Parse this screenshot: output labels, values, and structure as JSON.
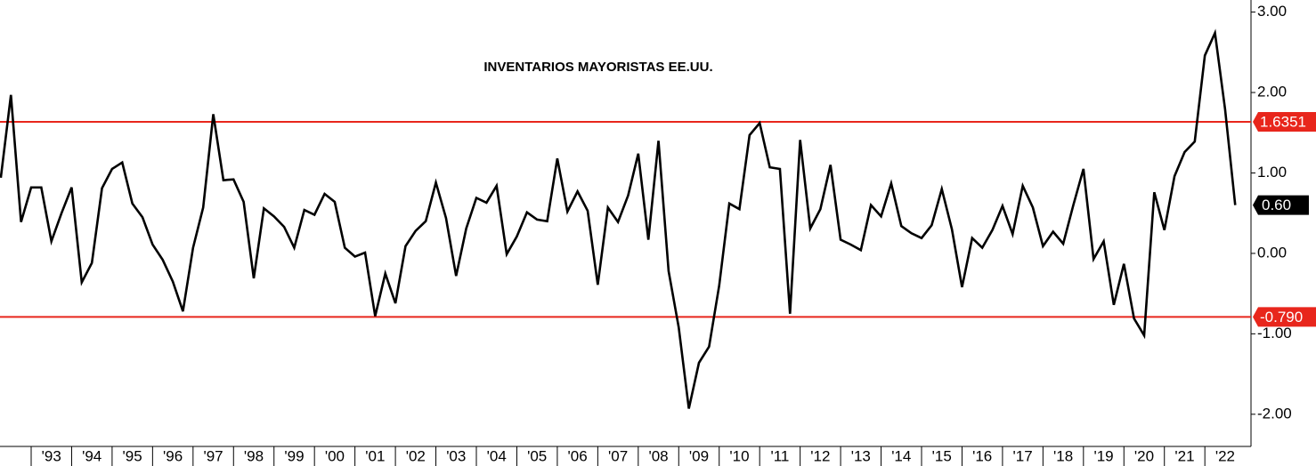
{
  "chart_data": {
    "type": "line",
    "title": "INVENTARIOS MAYORISTAS EE.UU.",
    "x": [
      1992.25,
      1992.5,
      1992.75,
      1993,
      1993.25,
      1993.5,
      1993.75,
      1994,
      1994.25,
      1994.5,
      1994.75,
      1995,
      1995.25,
      1995.5,
      1995.75,
      1996,
      1996.25,
      1996.5,
      1996.75,
      1997,
      1997.25,
      1997.5,
      1997.75,
      1998,
      1998.25,
      1998.5,
      1998.75,
      1999,
      1999.25,
      1999.5,
      1999.75,
      2000,
      2000.25,
      2000.5,
      2000.75,
      2001,
      2001.25,
      2001.5,
      2001.75,
      2002,
      2002.25,
      2002.5,
      2002.75,
      2003,
      2003.25,
      2003.5,
      2003.75,
      2004,
      2004.25,
      2004.5,
      2004.75,
      2005,
      2005.25,
      2005.5,
      2005.75,
      2006,
      2006.25,
      2006.5,
      2006.75,
      2007,
      2007.25,
      2007.5,
      2007.75,
      2008,
      2008.25,
      2008.5,
      2008.75,
      2009,
      2009.25,
      2009.5,
      2009.75,
      2010,
      2010.25,
      2010.5,
      2010.75,
      2011,
      2011.25,
      2011.5,
      2011.75,
      2012,
      2012.25,
      2012.5,
      2012.75,
      2013,
      2013.25,
      2013.5,
      2013.75,
      2014,
      2014.25,
      2014.5,
      2014.75,
      2015,
      2015.25,
      2015.5,
      2015.75,
      2016,
      2016.25,
      2016.5,
      2016.75,
      2017,
      2017.25,
      2017.5,
      2017.75,
      2018,
      2018.25,
      2018.5,
      2018.75,
      2019,
      2019.25,
      2019.5,
      2019.75,
      2020,
      2020.25,
      2020.5,
      2020.75,
      2021,
      2021.25,
      2021.5,
      2021.75,
      2022,
      2022.25,
      2022.5,
      2022.75
    ],
    "series": [
      {
        "color": "#000000",
        "values": [
          0.94,
          1.97,
          0.39,
          0.82,
          0.82,
          0.15,
          0.5,
          0.82,
          -0.36,
          -0.12,
          0.81,
          1.05,
          1.13,
          0.62,
          0.45,
          0.11,
          -0.08,
          -0.35,
          -0.72,
          0.07,
          0.57,
          1.73,
          0.91,
          0.92,
          0.64,
          -0.31,
          0.56,
          0.46,
          0.33,
          0.07,
          0.54,
          0.48,
          0.74,
          0.64,
          0.07,
          -0.04,
          0.01,
          -0.78,
          -0.25,
          -0.62,
          0.09,
          0.28,
          0.4,
          0.88,
          0.44,
          -0.28,
          0.31,
          0.69,
          0.63,
          0.84,
          -0.01,
          0.21,
          0.51,
          0.42,
          0.4,
          1.18,
          0.52,
          0.77,
          0.53,
          -0.39,
          0.57,
          0.39,
          0.72,
          1.24,
          0.17,
          1.4,
          -0.22,
          -0.92,
          -1.93,
          -1.36,
          -1.16,
          -0.4,
          0.62,
          0.55,
          1.47,
          1.62,
          1.07,
          1.05,
          -0.75,
          1.41,
          0.31,
          0.55,
          1.1,
          0.17,
          0.11,
          0.04,
          0.6,
          0.46,
          0.87,
          0.34,
          0.25,
          0.19,
          0.35,
          0.8,
          0.3,
          -0.42,
          0.19,
          0.07,
          0.29,
          0.59,
          0.24,
          0.84,
          0.57,
          0.09,
          0.27,
          0.12,
          0.6,
          1.05,
          -0.07,
          0.15,
          -0.64,
          -0.13,
          -0.81,
          -1.02,
          0.76,
          0.29,
          0.96,
          1.26,
          1.39,
          2.46,
          2.74,
          1.79,
          0.6
        ]
      }
    ],
    "last_value_label": "0.60",
    "hlines": [
      {
        "value": 1.6351,
        "label": "1.6351",
        "color": "#e8261c"
      },
      {
        "value": -0.79,
        "label": "-0.790",
        "color": "#e8261c"
      }
    ],
    "xlim": [
      1992.23,
      2023.14
    ],
    "xticks": [
      {
        "value": 1993,
        "label": "'93"
      },
      {
        "value": 1994,
        "label": "'94"
      },
      {
        "value": 1995,
        "label": "'95"
      },
      {
        "value": 1996,
        "label": "'96"
      },
      {
        "value": 1997,
        "label": "'97"
      },
      {
        "value": 1998,
        "label": "'98"
      },
      {
        "value": 1999,
        "label": "'99"
      },
      {
        "value": 2000,
        "label": "'00"
      },
      {
        "value": 2001,
        "label": "'01"
      },
      {
        "value": 2002,
        "label": "'02"
      },
      {
        "value": 2003,
        "label": "'03"
      },
      {
        "value": 2004,
        "label": "'04"
      },
      {
        "value": 2005,
        "label": "'05"
      },
      {
        "value": 2006,
        "label": "'06"
      },
      {
        "value": 2007,
        "label": "'07"
      },
      {
        "value": 2008,
        "label": "'08"
      },
      {
        "value": 2009,
        "label": "'09"
      },
      {
        "value": 2010,
        "label": "'10"
      },
      {
        "value": 2011,
        "label": "'11"
      },
      {
        "value": 2012,
        "label": "'12"
      },
      {
        "value": 2013,
        "label": "'13"
      },
      {
        "value": 2014,
        "label": "'14"
      },
      {
        "value": 2015,
        "label": "'15"
      },
      {
        "value": 2016,
        "label": "'16"
      },
      {
        "value": 2017,
        "label": "'17"
      },
      {
        "value": 2018,
        "label": "'18"
      },
      {
        "value": 2019,
        "label": "'19"
      },
      {
        "value": 2020,
        "label": "'20"
      },
      {
        "value": 2021,
        "label": "'21"
      },
      {
        "value": 2022,
        "label": "'22"
      }
    ],
    "ylim": [
      -2.4,
      3.15
    ],
    "yticks": [
      {
        "value": 3,
        "label": "3.00"
      },
      {
        "value": 2,
        "label": "2.00"
      },
      {
        "value": 1,
        "label": "1.00"
      },
      {
        "value": 0,
        "label": "0.00"
      },
      {
        "value": -1,
        "label": "-1.00"
      },
      {
        "value": -2,
        "label": "-2.00"
      }
    ],
    "y_axis_side": "right"
  }
}
